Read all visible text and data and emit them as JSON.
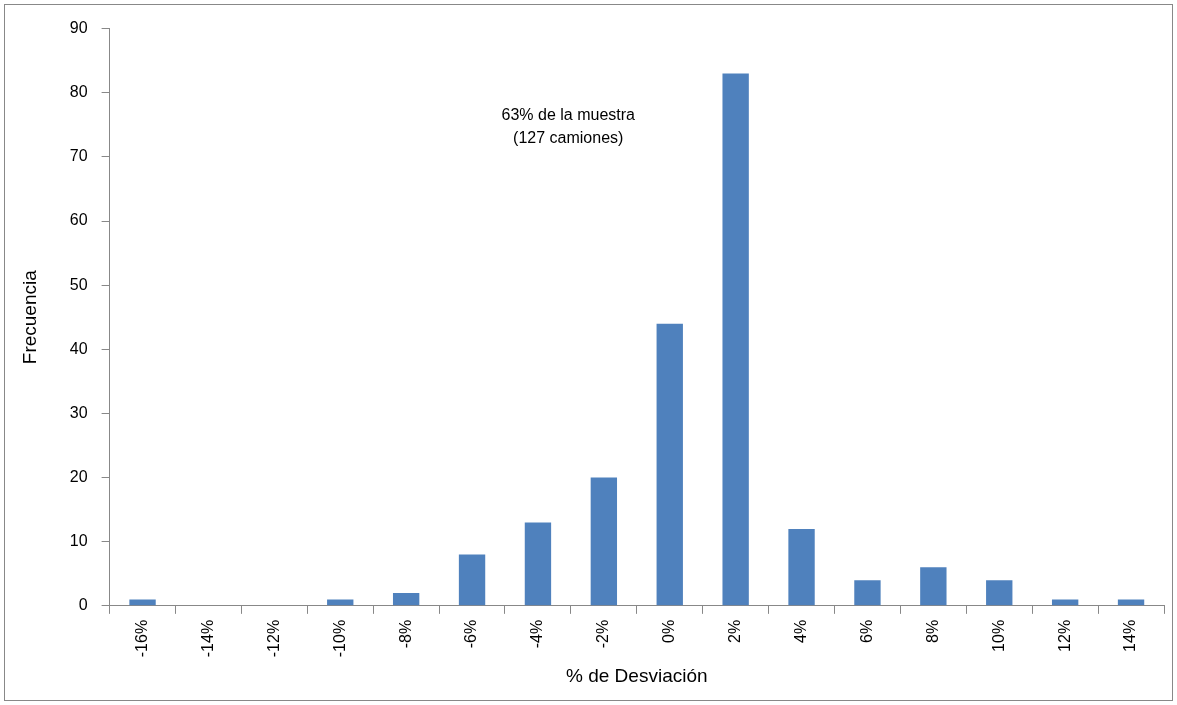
{
  "chart_data": {
    "type": "bar",
    "xlabel": "% de Desviación",
    "ylabel": "Frecuencia",
    "categories": [
      "-16%",
      "-14%",
      "-12%",
      "-10%",
      "-8%",
      "-6%",
      "-4%",
      "-2%",
      "0%",
      "2%",
      "4%",
      "6%",
      "8%",
      "10%",
      "12%",
      "14%"
    ],
    "values": [
      1,
      0,
      0,
      1,
      2,
      8,
      13,
      20,
      44,
      83,
      12,
      4,
      6,
      4,
      1,
      1
    ],
    "color": "#4f81bd",
    "ylim": [
      0,
      90
    ],
    "yticks": [
      0,
      10,
      20,
      30,
      40,
      50,
      60,
      70,
      80,
      90
    ],
    "grid": false,
    "legend": false,
    "annotations": [
      "63% de la muestra\n(127 camiones)"
    ]
  }
}
